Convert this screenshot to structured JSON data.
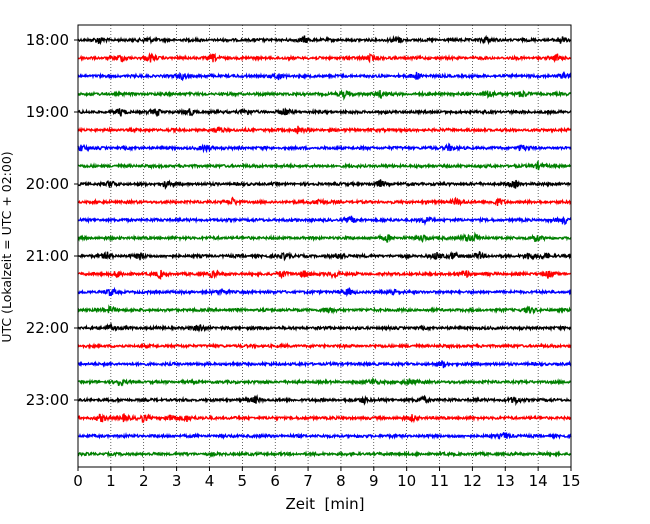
{
  "chart_data": {
    "type": "line",
    "title": "",
    "xlabel": "Zeit  [min]",
    "ylabel": "UTC (Lokalzeit = UTC + 02:00)",
    "xlim": [
      0,
      15
    ],
    "x_ticks": [
      "0",
      "1",
      "2",
      "3",
      "4",
      "5",
      "6",
      "7",
      "8",
      "9",
      "10",
      "11",
      "12",
      "13",
      "14",
      "15"
    ],
    "y_ticks": [
      "18:00",
      "19:00",
      "20:00",
      "21:00",
      "22:00",
      "23:00"
    ],
    "grid": "vertical dotted lines at each minute",
    "trace_colors": [
      "#000000",
      "#ff0000",
      "#0000ff",
      "#008000"
    ],
    "traces": [
      {
        "start": "18:00",
        "color": "#000000",
        "events": [
          0.65,
          2.1,
          6.9,
          9.7,
          12.4,
          14.7
        ]
      },
      {
        "start": "18:15",
        "color": "#ff0000",
        "events": [
          1.3,
          2.2,
          4.1,
          8.9,
          14.6
        ]
      },
      {
        "start": "18:30",
        "color": "#0000ff",
        "events": [
          3.2,
          6.1,
          10.3,
          14.8
        ]
      },
      {
        "start": "18:45",
        "color": "#008000",
        "events": [
          8.1,
          9.2,
          12.5,
          13.5
        ]
      },
      {
        "start": "19:00",
        "color": "#000000",
        "events": [
          1.3,
          2.4,
          3.4,
          5.1,
          6.3
        ]
      },
      {
        "start": "19:15",
        "color": "#ff0000",
        "events": [
          4.3,
          6.7
        ]
      },
      {
        "start": "19:30",
        "color": "#0000ff",
        "events": [
          0.1,
          3.9,
          11.3,
          13.5
        ]
      },
      {
        "start": "19:45",
        "color": "#008000",
        "events": [
          14.0
        ]
      },
      {
        "start": "20:00",
        "color": "#000000",
        "events": [
          1.0,
          2.65,
          9.2,
          13.3
        ]
      },
      {
        "start": "20:15",
        "color": "#ff0000",
        "events": [
          4.7,
          7.3,
          11.5,
          12.8
        ]
      },
      {
        "start": "20:30",
        "color": "#0000ff",
        "events": [
          8.3,
          10.6,
          14.8
        ]
      },
      {
        "start": "20:45",
        "color": "#008000",
        "events": [
          9.4,
          10.5,
          11.8,
          12.1,
          13.9
        ]
      },
      {
        "start": "21:00",
        "color": "#000000",
        "events": [
          0.9,
          1.9,
          6.3,
          8.0,
          10.9,
          11.4,
          12.2,
          13.7,
          14.2
        ]
      },
      {
        "start": "21:15",
        "color": "#ff0000",
        "events": [
          1.2,
          2.5,
          4.1,
          6.2,
          6.9,
          7.8,
          11.8,
          14.3
        ]
      },
      {
        "start": "21:30",
        "color": "#0000ff",
        "events": [
          1.0,
          4.4,
          8.2,
          9.6
        ]
      },
      {
        "start": "21:45",
        "color": "#008000",
        "events": [
          1.0,
          7.6,
          13.7
        ]
      },
      {
        "start": "22:00",
        "color": "#000000",
        "events": [
          1.0,
          3.7
        ]
      },
      {
        "start": "22:15",
        "color": "#ff0000",
        "events": []
      },
      {
        "start": "22:30",
        "color": "#0000ff",
        "events": [
          11.1
        ]
      },
      {
        "start": "22:45",
        "color": "#008000",
        "events": [
          1.25,
          9.0,
          10.1
        ]
      },
      {
        "start": "23:00",
        "color": "#000000",
        "events": [
          5.4,
          8.7,
          10.5,
          13.3
        ]
      },
      {
        "start": "23:15",
        "color": "#ff0000",
        "events": [
          0.7,
          1.4,
          2.0,
          2.85,
          3.3,
          10.2
        ]
      },
      {
        "start": "23:30",
        "color": "#0000ff",
        "events": [
          13.0
        ]
      },
      {
        "start": "23:45",
        "color": "#008000",
        "events": []
      }
    ]
  }
}
